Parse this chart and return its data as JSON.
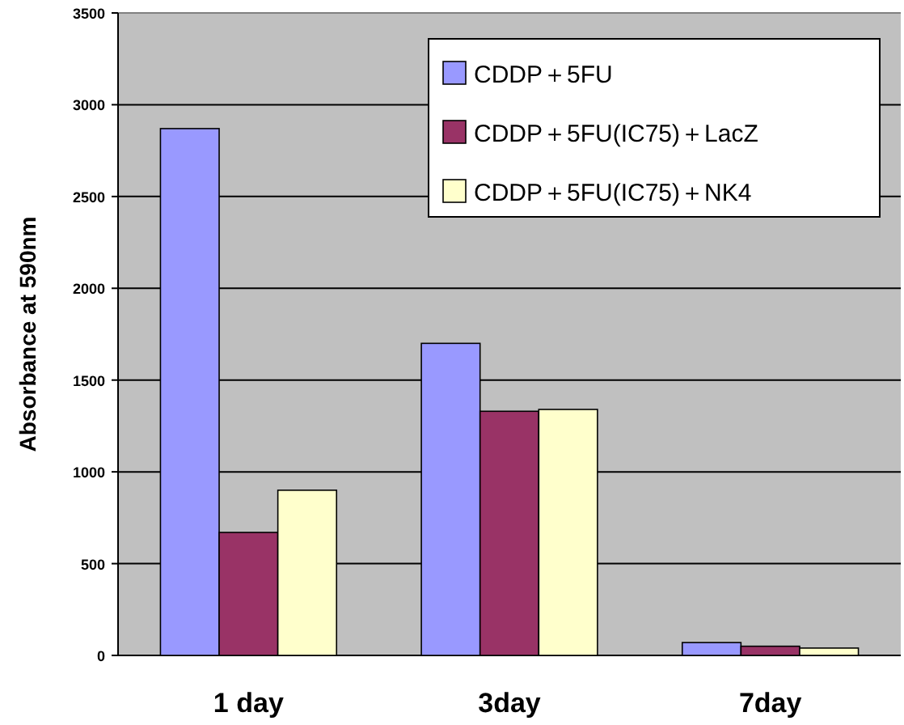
{
  "chart_data": {
    "type": "bar",
    "ylabel": "Absorbance at 590nm",
    "categories": [
      "1 day",
      "3day",
      "7day"
    ],
    "series": [
      {
        "name": "CDDP＋5FU",
        "color": "#9999ff",
        "values": [
          2870,
          1700,
          70
        ]
      },
      {
        "name": "CDDP＋5FU(IC75)＋LacZ",
        "color": "#993366",
        "values": [
          670,
          1330,
          50
        ]
      },
      {
        "name": "CDDP＋5FU(IC75)＋NK4",
        "color": "#ffffcc",
        "values": [
          900,
          1340,
          40
        ]
      }
    ],
    "ylim": [
      0,
      3500
    ],
    "yticks": [
      0,
      500,
      1000,
      1500,
      2000,
      2500,
      3000,
      3500
    ],
    "grid": "y",
    "legend": "top right"
  }
}
